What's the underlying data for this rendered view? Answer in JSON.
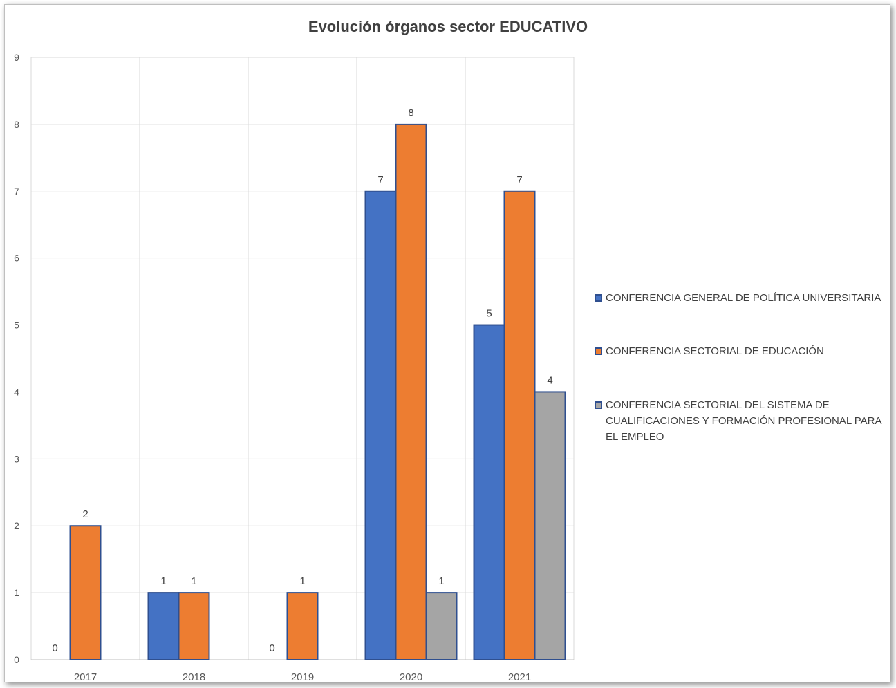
{
  "chart_data": {
    "type": "bar",
    "title": "Evolución órganos sector EDUCATIVO",
    "categories": [
      "2017",
      "2018",
      "2019",
      "2020",
      "2021"
    ],
    "series": [
      {
        "name": "CONFERENCIA GENERAL DE POLÍTICA UNIVERSITARIA",
        "color": "#4472c4",
        "values": [
          0,
          1,
          0,
          7,
          5
        ]
      },
      {
        "name": "CONFERENCIA SECTORIAL DE EDUCACIÓN",
        "color": "#ed7d31",
        "values": [
          2,
          1,
          1,
          8,
          7
        ]
      },
      {
        "name": "CONFERENCIA SECTORIAL DEL SISTEMA DE CUALIFICACIONES Y FORMACIÓN PROFESIONAL PARA EL EMPLEO",
        "color": "#a5a5a5",
        "values": [
          null,
          null,
          null,
          1,
          4
        ]
      }
    ],
    "ylim": [
      0,
      9
    ],
    "yticks": [
      0,
      1,
      2,
      3,
      4,
      5,
      6,
      7,
      8,
      9
    ],
    "grid": true,
    "legend_position": "right",
    "bar_border_color": "#2f4f8f"
  }
}
